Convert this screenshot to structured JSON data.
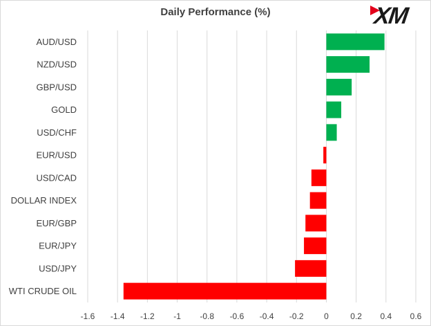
{
  "brand": {
    "logo_text": "XM",
    "logo_color": "#e3001b"
  },
  "colors": {
    "positive": "#00b050",
    "negative": "#ff0000",
    "grid": "#d9d9d9",
    "text": "#404040"
  },
  "chart_data": {
    "type": "bar",
    "orientation": "horizontal",
    "title": "Daily Performance (%)",
    "xlabel": "",
    "ylabel": "",
    "xlim": [
      -1.6,
      0.6
    ],
    "xticks": [
      -1.6,
      -1.4,
      -1.2,
      -1,
      -0.8,
      -0.6,
      -0.4,
      -0.2,
      0,
      0.2,
      0.4,
      0.6
    ],
    "grid": true,
    "legend": "none",
    "categories": [
      "AUD/USD",
      "NZD/USD",
      "GBP/USD",
      "GOLD",
      "USD/CHF",
      "EUR/USD",
      "USD/CAD",
      "DOLLAR INDEX",
      "EUR/GBP",
      "EUR/JPY",
      "USD/JPY",
      "WTI CRUDE OIL"
    ],
    "values": [
      0.39,
      0.29,
      0.17,
      0.1,
      0.07,
      -0.02,
      -0.1,
      -0.11,
      -0.14,
      -0.15,
      -0.21,
      -1.36
    ]
  }
}
